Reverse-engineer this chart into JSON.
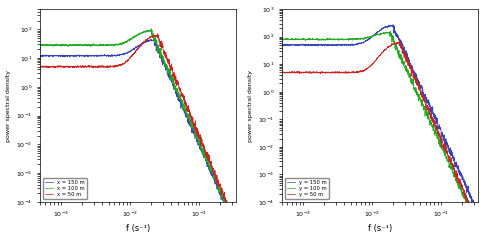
{
  "ylabel": "power spectral density",
  "xlabel": "f (s⁻¹)",
  "left_legend": [
    "x = 150 m",
    "x = 100 m",
    "x = 50 m"
  ],
  "right_legend": [
    "y = 150 m",
    "y = 100 m",
    "y = 50 m"
  ],
  "colors_left": [
    "#3344bb",
    "#22aa22",
    "#cc2222"
  ],
  "colors_right": [
    "#3344bb",
    "#22aa22",
    "#cc2222"
  ],
  "xlim": [
    0.0005,
    0.35
  ],
  "ylim_left": [
    0.0001,
    500.0
  ],
  "ylim_right": [
    0.0001,
    1000.0
  ],
  "bg_color": "#ffffff",
  "fig_color": "#ffffff",
  "linewidth": 0.5
}
